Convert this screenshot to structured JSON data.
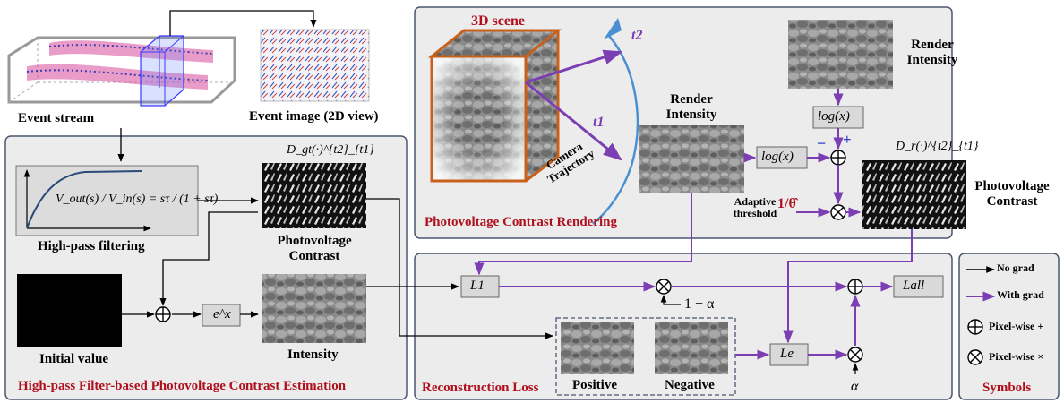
{
  "colors": {
    "panel_fill": "#ececec",
    "panel_border": "#4a5670",
    "no_grad": "#000000",
    "with_grad": "#7b3fb3",
    "title_red": "#b0101d",
    "scene_cube": "#c8601a",
    "trajectory": "#4a90d0"
  },
  "top_left": {
    "event_stream_label": "Event stream",
    "event_image_label": "Event image (2D view)"
  },
  "estimation_panel": {
    "title": "High-pass Filter-based Photovoltage Contrast Estimation",
    "filter_formula": "V_out(s) / V_in(s) = sτ / (1 + sτ)",
    "filter_label": "High-pass filtering",
    "dgt_label": "D_gt(·)^{t2}_{t1}",
    "photovoltage_label": "Photovoltage Contrast",
    "initial_value_label": "Initial value",
    "exp_op": "e^x",
    "intensity_label": "Intensity"
  },
  "rendering_panel": {
    "title": "Photovoltage Contrast  Rendering",
    "scene_label": "3D scene",
    "t1": "t1",
    "t2": "t2",
    "camera_trajectory": "Camera Trajectory",
    "render_intensity_1": "Render Intensity",
    "render_intensity_2": "Render Intensity",
    "log_op": "log(x)",
    "minus": "−",
    "plus": "+",
    "adaptive_threshold": "Adaptive threshold",
    "inv_theta": "1/θ̂",
    "dr_label": "D_r(·)^{t2}_{t1}",
    "photovoltage_label": "Photovoltage Contrast"
  },
  "loss_panel": {
    "title": "Reconstruction Loss",
    "l1": "L1",
    "one_minus_alpha": "1 − α",
    "positive": "Positive",
    "negative": "Negative",
    "le": "Le",
    "alpha": "α",
    "lall": "Lall"
  },
  "symbols": {
    "title": "Symbols",
    "no_grad": "No grad",
    "with_grad": "With grad",
    "pixel_plus": "Pixel-wise +",
    "pixel_times": "Pixel-wise ×"
  }
}
